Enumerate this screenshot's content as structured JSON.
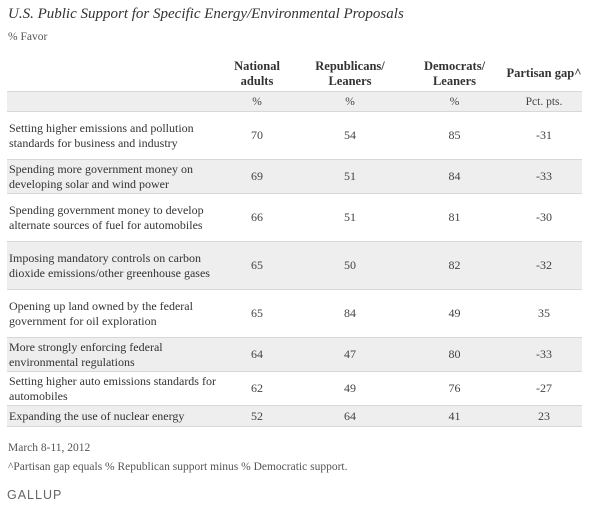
{
  "title": "U.S. Public Support for Specific Energy/Environmental Proposals",
  "subtitle": "% Favor",
  "headers": {
    "national": "National adults",
    "republicans": "Republicans/ Leaners",
    "democrats": "Democrats/ Leaners",
    "gap": "Partisan gap^"
  },
  "units": {
    "national": "%",
    "republicans": "%",
    "democrats": "%",
    "gap": "Pct. pts."
  },
  "rows": [
    {
      "label": "Setting higher emissions and pollution standards for business and industry",
      "national": "70",
      "republicans": "54",
      "democrats": "85",
      "gap": "-31"
    },
    {
      "label": "Spending more government money on developing solar and wind power",
      "national": "69",
      "republicans": "51",
      "democrats": "84",
      "gap": "-33"
    },
    {
      "label": "Spending government money to develop alternate sources of fuel for automobiles",
      "national": "66",
      "republicans": "51",
      "democrats": "81",
      "gap": "-30"
    },
    {
      "label": "Imposing mandatory controls on carbon dioxide emissions/other greenhouse gases",
      "national": "65",
      "republicans": "50",
      "democrats": "82",
      "gap": "-32"
    },
    {
      "label": "Opening up land owned by the federal government for oil exploration",
      "national": "65",
      "republicans": "84",
      "democrats": "49",
      "gap": "35"
    },
    {
      "label": "More strongly enforcing federal environmental regulations",
      "national": "64",
      "republicans": "47",
      "democrats": "80",
      "gap": "-33"
    },
    {
      "label": "Setting higher auto emissions standards for automobiles",
      "national": "62",
      "republicans": "49",
      "democrats": "76",
      "gap": "-27"
    },
    {
      "label": "Expanding the use of nuclear energy",
      "national": "52",
      "republicans": "64",
      "democrats": "41",
      "gap": "23"
    }
  ],
  "date": "March 8-11, 2012",
  "footnote": "^Partisan gap equals % Republican support minus % Democratic support.",
  "logo": "GALLUP"
}
